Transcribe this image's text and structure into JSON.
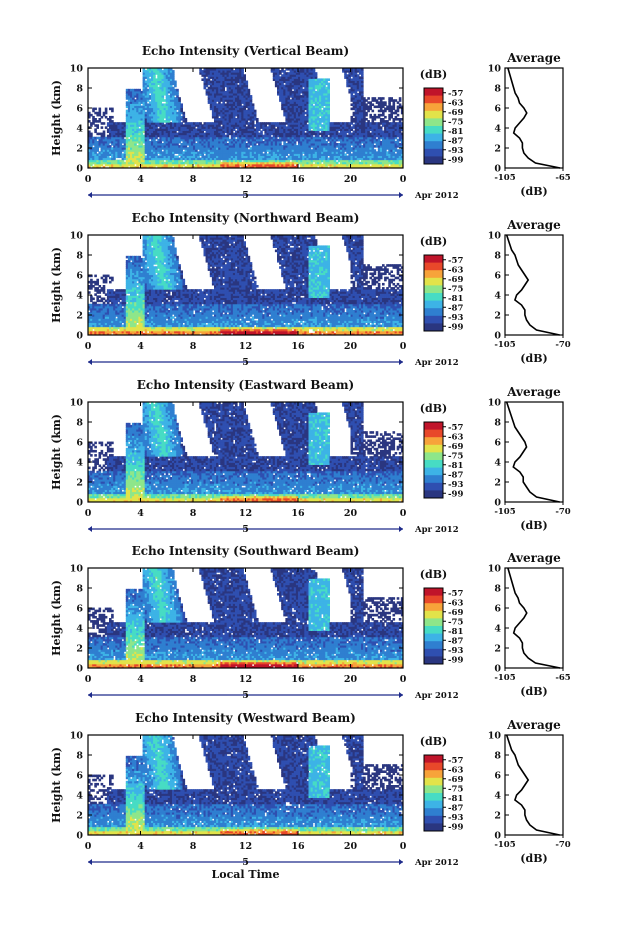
{
  "figure": {
    "xlabel": "Local Time",
    "date_label": "Apr 2012",
    "day_marker": "5",
    "ylabel": "Height (km)",
    "x_ticks": [
      "0",
      "4",
      "8",
      "12",
      "16",
      "20",
      "0"
    ],
    "y_ticks": [
      "0",
      "2",
      "4",
      "6",
      "8",
      "10"
    ],
    "colorbar_title": "(dB)",
    "colorbar_ticks": [
      "-57",
      "-63",
      "-69",
      "-75",
      "-81",
      "-87",
      "-93",
      "-99"
    ],
    "average_title": "Average",
    "average_xlabel": "(dB)"
  },
  "colors": {
    "scale": [
      "#2a3680",
      "#2f4fb0",
      "#2f7fd0",
      "#3db3e6",
      "#47dcc4",
      "#8ee68a",
      "#e2e34a",
      "#f7a33a",
      "#e8482a",
      "#c0142a"
    ]
  },
  "chart_data": [
    {
      "type": "heatmap",
      "title": "Echo Intensity (Vertical Beam)",
      "xlabel": "Local Time",
      "ylabel": "Height (km)",
      "xlim": [
        0,
        24
      ],
      "ylim": [
        0,
        10
      ],
      "colorbar": {
        "label": "(dB)",
        "range": [
          -102,
          -54
        ],
        "ticks": [
          -57,
          -63,
          -69,
          -75,
          -81,
          -87,
          -93,
          -99
        ]
      },
      "average_profile": {
        "title": "Average",
        "xlabel": "(dB)",
        "xlim": [
          -105,
          -65
        ],
        "x_ticks": [
          "-105",
          "-65"
        ],
        "height": [
          0,
          0.5,
          1,
          1.5,
          2,
          2.5,
          3,
          3.5,
          4,
          4.5,
          5,
          5.5,
          6,
          6.5,
          7,
          7.5,
          8,
          8.5,
          9,
          9.5,
          10
        ],
        "value": [
          -67,
          -84,
          -89,
          -92,
          -93,
          -93,
          -95,
          -99,
          -98,
          -95,
          -92,
          -90,
          -92,
          -95,
          -96,
          -98,
          -99,
          -100,
          -101,
          -102,
          -103
        ]
      }
    },
    {
      "type": "heatmap",
      "title": "Echo Intensity (Northward Beam)",
      "xlabel": "Local Time",
      "ylabel": "Height (km)",
      "xlim": [
        0,
        24
      ],
      "ylim": [
        0,
        10
      ],
      "colorbar": {
        "label": "(dB)",
        "range": [
          -102,
          -54
        ],
        "ticks": [
          -57,
          -63,
          -69,
          -75,
          -81,
          -87,
          -93,
          -99
        ]
      },
      "average_profile": {
        "title": "Average",
        "xlabel": "(dB)",
        "xlim": [
          -105,
          -70
        ],
        "x_ticks": [
          "-105",
          "-70"
        ],
        "height": [
          0,
          0.5,
          1,
          1.5,
          2,
          2.5,
          3,
          3.5,
          4,
          4.5,
          5,
          5.5,
          6,
          6.5,
          7,
          7.5,
          8,
          8.5,
          9,
          9.5,
          10
        ],
        "value": [
          -72,
          -86,
          -90,
          -92,
          -93,
          -93,
          -95,
          -99,
          -98,
          -95,
          -93,
          -91,
          -93,
          -95,
          -97,
          -98,
          -99,
          -101,
          -102,
          -103,
          -104
        ]
      }
    },
    {
      "type": "heatmap",
      "title": "Echo Intensity (Eastward Beam)",
      "xlabel": "Local Time",
      "ylabel": "Height (km)",
      "xlim": [
        0,
        24
      ],
      "ylim": [
        0,
        10
      ],
      "colorbar": {
        "label": "(dB)",
        "range": [
          -102,
          -54
        ],
        "ticks": [
          -57,
          -63,
          -69,
          -75,
          -81,
          -87,
          -93,
          -99
        ]
      },
      "average_profile": {
        "title": "Average",
        "xlabel": "(dB)",
        "xlim": [
          -105,
          -70
        ],
        "x_ticks": [
          "-105",
          "-70"
        ],
        "height": [
          0,
          0.5,
          1,
          1.5,
          2,
          2.5,
          3,
          3.5,
          4,
          4.5,
          5,
          5.5,
          6,
          6.5,
          7,
          7.5,
          8,
          8.5,
          9,
          9.5,
          10
        ],
        "value": [
          -72,
          -86,
          -90,
          -92,
          -94,
          -94,
          -96,
          -100,
          -99,
          -96,
          -94,
          -92,
          -93,
          -95,
          -97,
          -99,
          -100,
          -101,
          -102,
          -103,
          -104
        ]
      }
    },
    {
      "type": "heatmap",
      "title": "Echo Intensity (Southward Beam)",
      "xlabel": "Local Time",
      "ylabel": "Height (km)",
      "xlim": [
        0,
        24
      ],
      "ylim": [
        0,
        10
      ],
      "colorbar": {
        "label": "(dB)",
        "range": [
          -102,
          -54
        ],
        "ticks": [
          -57,
          -63,
          -69,
          -75,
          -81,
          -87,
          -93,
          -99
        ]
      },
      "average_profile": {
        "title": "Average",
        "xlabel": "(dB)",
        "xlim": [
          -105,
          -65
        ],
        "x_ticks": [
          "-105",
          "-65"
        ],
        "height": [
          0,
          0.5,
          1,
          1.5,
          2,
          2.5,
          3,
          3.5,
          4,
          4.5,
          5,
          5.5,
          6,
          6.5,
          7,
          7.5,
          8,
          8.5,
          9,
          9.5,
          10
        ],
        "value": [
          -67,
          -84,
          -89,
          -92,
          -93,
          -93,
          -95,
          -99,
          -98,
          -95,
          -92,
          -90,
          -92,
          -95,
          -96,
          -98,
          -99,
          -100,
          -101,
          -102,
          -103
        ]
      }
    },
    {
      "type": "heatmap",
      "title": "Echo Intensity (Westward Beam)",
      "xlabel": "Local Time",
      "ylabel": "Height (km)",
      "xlim": [
        0,
        24
      ],
      "ylim": [
        0,
        10
      ],
      "colorbar": {
        "label": "(dB)",
        "range": [
          -102,
          -54
        ],
        "ticks": [
          -57,
          -63,
          -69,
          -75,
          -81,
          -87,
          -93,
          -99
        ]
      },
      "average_profile": {
        "title": "Average",
        "xlabel": "(dB)",
        "xlim": [
          -105,
          -70
        ],
        "x_ticks": [
          "-105",
          "-70"
        ],
        "height": [
          0,
          0.5,
          1,
          1.5,
          2,
          2.5,
          3,
          3.5,
          4,
          4.5,
          5,
          5.5,
          6,
          6.5,
          7,
          7.5,
          8,
          8.5,
          9,
          9.5,
          10
        ],
        "value": [
          -72,
          -86,
          -90,
          -92,
          -93,
          -93,
          -95,
          -99,
          -98,
          -95,
          -93,
          -91,
          -93,
          -95,
          -97,
          -98,
          -99,
          -101,
          -102,
          -103,
          -104
        ]
      }
    }
  ]
}
